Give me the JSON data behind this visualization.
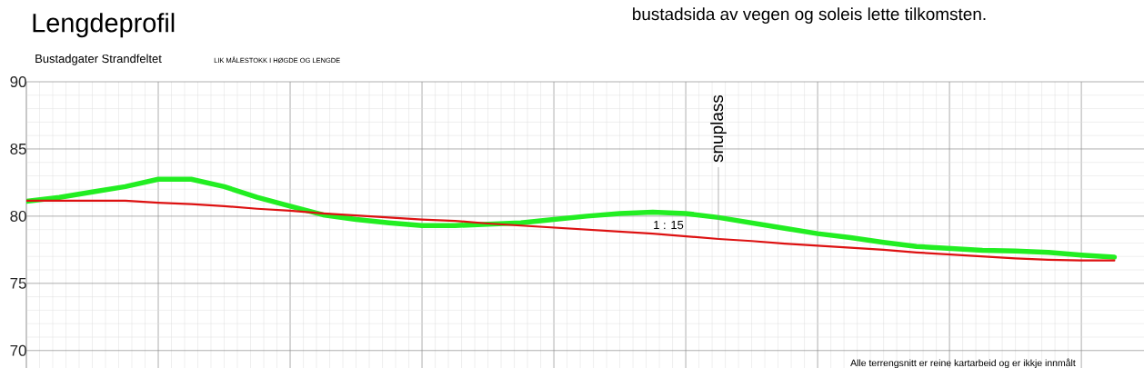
{
  "chart_data": {
    "type": "line",
    "title": "Lengdeprofil",
    "subtitle": "Bustadgater Strandfeltet",
    "annotations": [
      "bustadsida av vegen og soleis lette tilkomsten.",
      "LIK MÅLESTOKK I HØGDE OG LENGDE",
      "snuplass",
      "1 : 15",
      "Alle terrengsnitt er reine kartarbeid og er ikkje innmålt"
    ],
    "categories": [
      null,
      null,
      null,
      null,
      null,
      null,
      null,
      null,
      null,
      null,
      null,
      null,
      null,
      null,
      null,
      null,
      null,
      null,
      null,
      null,
      null,
      null,
      null,
      null,
      null,
      null,
      null,
      null,
      null,
      null,
      null,
      null,
      null,
      null
    ],
    "series": [
      {
        "color": "#22ee22",
        "values": [
          81.1,
          81.4,
          81.8,
          82.2,
          82.75,
          82.75,
          82.2,
          81.4,
          80.75,
          80.1,
          79.75,
          79.5,
          79.3,
          79.3,
          79.4,
          79.5,
          79.75,
          80.0,
          80.2,
          80.3,
          80.2,
          79.9,
          79.5,
          79.1,
          78.7,
          78.4,
          78.05,
          77.75,
          77.6,
          77.45,
          77.4,
          77.3,
          77.1,
          76.95
        ]
      },
      {
        "color": "#dd1111",
        "values": [
          81.15,
          81.15,
          81.15,
          81.15,
          81.0,
          80.9,
          80.75,
          80.55,
          80.4,
          80.2,
          80.05,
          79.9,
          79.75,
          79.65,
          79.45,
          79.3,
          79.15,
          79.0,
          78.85,
          78.7,
          78.5,
          78.3,
          78.15,
          77.95,
          77.8,
          77.65,
          77.5,
          77.3,
          77.15,
          77.0,
          76.85,
          76.75,
          76.7,
          76.7
        ]
      }
    ],
    "ylim": [
      68.7,
      90
    ],
    "yticks": [
      70,
      75,
      80,
      85,
      90
    ],
    "grid": true,
    "marker": "none",
    "line_style": "solid"
  }
}
